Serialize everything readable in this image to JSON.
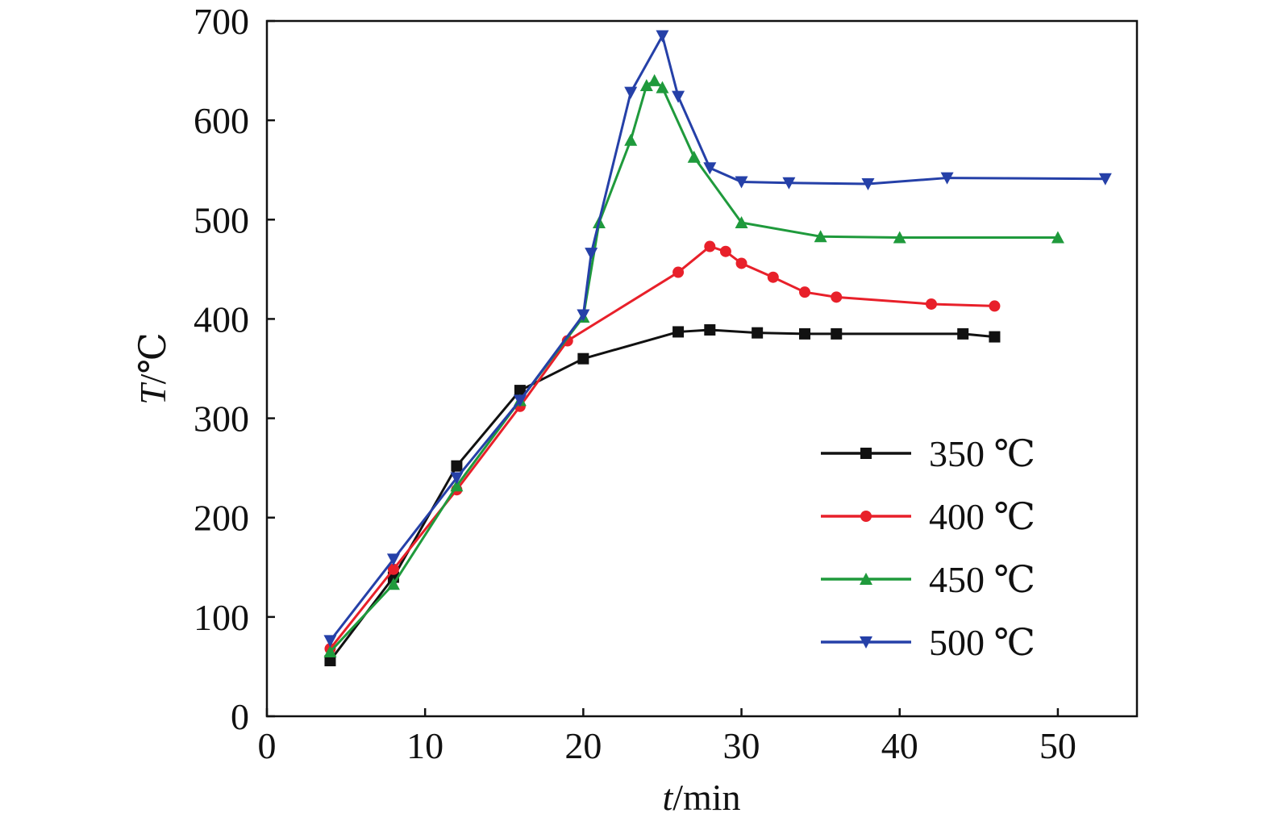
{
  "chart_data": {
    "type": "line",
    "xlabel_italic": "t",
    "xlabel_rest": "/min",
    "ylabel_italic": "T",
    "ylabel_rest": "/℃",
    "xlim": [
      0,
      55
    ],
    "ylim": [
      0,
      700
    ],
    "xticks": [
      0,
      10,
      20,
      30,
      40,
      50
    ],
    "yticks": [
      0,
      100,
      200,
      300,
      400,
      500,
      600,
      700
    ],
    "grid": false,
    "legend_position": "lower-right",
    "series": [
      {
        "name": "350 ℃",
        "color": "#111111",
        "marker": "square",
        "points": [
          [
            4,
            56
          ],
          [
            8,
            140
          ],
          [
            12,
            252
          ],
          [
            16,
            328
          ],
          [
            20,
            360
          ],
          [
            26,
            387
          ],
          [
            28,
            389
          ],
          [
            31,
            386
          ],
          [
            34,
            385
          ],
          [
            36,
            385
          ],
          [
            44,
            385
          ],
          [
            46,
            382
          ]
        ]
      },
      {
        "name": "400 ℃",
        "color": "#e8202a",
        "marker": "circle",
        "points": [
          [
            4,
            68
          ],
          [
            8,
            148
          ],
          [
            12,
            228
          ],
          [
            16,
            312
          ],
          [
            19,
            378
          ],
          [
            26,
            447
          ],
          [
            28,
            473
          ],
          [
            29,
            468
          ],
          [
            30,
            456
          ],
          [
            32,
            442
          ],
          [
            34,
            427
          ],
          [
            36,
            422
          ],
          [
            42,
            415
          ],
          [
            46,
            413
          ]
        ]
      },
      {
        "name": "450 ℃",
        "color": "#1f9a3c",
        "marker": "triangle-up",
        "points": [
          [
            4,
            65
          ],
          [
            8,
            133
          ],
          [
            12,
            232
          ],
          [
            16,
            318
          ],
          [
            20,
            402
          ],
          [
            21,
            497
          ],
          [
            23,
            580
          ],
          [
            24,
            635
          ],
          [
            24.5,
            640
          ],
          [
            25,
            633
          ],
          [
            27,
            563
          ],
          [
            30,
            497
          ],
          [
            35,
            483
          ],
          [
            40,
            482
          ],
          [
            50,
            482
          ]
        ]
      },
      {
        "name": "500 ℃",
        "color": "#2540a8",
        "marker": "triangle-down",
        "points": [
          [
            4,
            76
          ],
          [
            8,
            158
          ],
          [
            12,
            240
          ],
          [
            16,
            318
          ],
          [
            20,
            404
          ],
          [
            20.5,
            466
          ],
          [
            23,
            628
          ],
          [
            25,
            685
          ],
          [
            26,
            624
          ],
          [
            28,
            552
          ],
          [
            30,
            538
          ],
          [
            33,
            537
          ],
          [
            38,
            536
          ],
          [
            43,
            542
          ],
          [
            53,
            541
          ]
        ]
      }
    ]
  }
}
